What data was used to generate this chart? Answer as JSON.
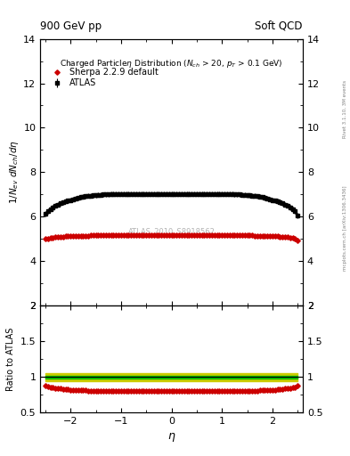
{
  "title_left": "900 GeV pp",
  "title_right": "Soft QCD",
  "watermark": "ATLAS_2010_S8918562",
  "right_label_top": "Rivet 3.1.10, 3M events",
  "right_label_bottom": "mcplots.cern.ch [arXiv:1306.3436]",
  "xlim": [
    -2.6,
    2.6
  ],
  "ylim_main": [
    2,
    14
  ],
  "ylim_ratio": [
    0.5,
    2.0
  ],
  "yticks_main": [
    2,
    4,
    6,
    8,
    10,
    12,
    14
  ],
  "yticks_ratio": [
    0.5,
    1.0,
    1.5,
    2.0
  ],
  "atlas_eta": [
    -2.5,
    -2.45,
    -2.4,
    -2.35,
    -2.3,
    -2.25,
    -2.2,
    -2.15,
    -2.1,
    -2.05,
    -2.0,
    -1.95,
    -1.9,
    -1.85,
    -1.8,
    -1.75,
    -1.7,
    -1.65,
    -1.6,
    -1.55,
    -1.5,
    -1.45,
    -1.4,
    -1.35,
    -1.3,
    -1.25,
    -1.2,
    -1.15,
    -1.1,
    -1.05,
    -1.0,
    -0.95,
    -0.9,
    -0.85,
    -0.8,
    -0.75,
    -0.7,
    -0.65,
    -0.6,
    -0.55,
    -0.5,
    -0.45,
    -0.4,
    -0.35,
    -0.3,
    -0.25,
    -0.2,
    -0.15,
    -0.1,
    -0.05,
    0.0,
    0.05,
    0.1,
    0.15,
    0.2,
    0.25,
    0.3,
    0.35,
    0.4,
    0.45,
    0.5,
    0.55,
    0.6,
    0.65,
    0.7,
    0.75,
    0.8,
    0.85,
    0.9,
    0.95,
    1.0,
    1.05,
    1.1,
    1.15,
    1.2,
    1.25,
    1.3,
    1.35,
    1.4,
    1.45,
    1.5,
    1.55,
    1.6,
    1.65,
    1.7,
    1.75,
    1.8,
    1.85,
    1.9,
    1.95,
    2.0,
    2.05,
    2.1,
    2.15,
    2.2,
    2.25,
    2.3,
    2.35,
    2.4,
    2.45,
    2.5
  ],
  "atlas_val": [
    6.15,
    6.25,
    6.35,
    6.42,
    6.5,
    6.55,
    6.6,
    6.65,
    6.7,
    6.73,
    6.75,
    6.79,
    6.82,
    6.85,
    6.88,
    6.9,
    6.92,
    6.94,
    6.95,
    6.96,
    6.97,
    6.98,
    6.99,
    7.0,
    7.0,
    7.01,
    7.02,
    7.02,
    7.02,
    7.02,
    7.02,
    7.02,
    7.02,
    7.02,
    7.02,
    7.02,
    7.02,
    7.02,
    7.02,
    7.02,
    7.02,
    7.02,
    7.02,
    7.02,
    7.02,
    7.02,
    7.02,
    7.02,
    7.02,
    7.02,
    7.02,
    7.02,
    7.02,
    7.02,
    7.02,
    7.02,
    7.02,
    7.02,
    7.02,
    7.02,
    7.02,
    7.02,
    7.02,
    7.02,
    7.02,
    7.02,
    7.02,
    7.02,
    7.02,
    7.02,
    7.02,
    7.02,
    7.02,
    7.02,
    7.02,
    7.01,
    7.0,
    7.0,
    6.99,
    6.98,
    6.97,
    6.96,
    6.95,
    6.94,
    6.92,
    6.9,
    6.88,
    6.85,
    6.82,
    6.79,
    6.75,
    6.73,
    6.7,
    6.65,
    6.6,
    6.55,
    6.5,
    6.42,
    6.35,
    6.25,
    6.05
  ],
  "atlas_err": [
    0.12,
    0.11,
    0.11,
    0.11,
    0.1,
    0.1,
    0.1,
    0.1,
    0.1,
    0.1,
    0.1,
    0.1,
    0.1,
    0.1,
    0.1,
    0.1,
    0.1,
    0.1,
    0.1,
    0.1,
    0.1,
    0.1,
    0.1,
    0.1,
    0.1,
    0.1,
    0.1,
    0.1,
    0.1,
    0.1,
    0.1,
    0.1,
    0.1,
    0.1,
    0.1,
    0.1,
    0.1,
    0.1,
    0.1,
    0.1,
    0.1,
    0.1,
    0.1,
    0.1,
    0.1,
    0.1,
    0.1,
    0.1,
    0.1,
    0.1,
    0.1,
    0.1,
    0.1,
    0.1,
    0.1,
    0.1,
    0.1,
    0.1,
    0.1,
    0.1,
    0.1,
    0.1,
    0.1,
    0.1,
    0.1,
    0.1,
    0.1,
    0.1,
    0.1,
    0.1,
    0.1,
    0.1,
    0.1,
    0.1,
    0.1,
    0.1,
    0.1,
    0.1,
    0.1,
    0.1,
    0.1,
    0.1,
    0.1,
    0.1,
    0.1,
    0.1,
    0.1,
    0.1,
    0.1,
    0.1,
    0.1,
    0.1,
    0.1,
    0.1,
    0.1,
    0.1,
    0.1,
    0.11,
    0.11,
    0.11,
    0.12
  ],
  "sherpa_eta": [
    -2.5,
    -2.45,
    -2.4,
    -2.35,
    -2.3,
    -2.25,
    -2.2,
    -2.15,
    -2.1,
    -2.05,
    -2.0,
    -1.95,
    -1.9,
    -1.85,
    -1.8,
    -1.75,
    -1.7,
    -1.65,
    -1.6,
    -1.55,
    -1.5,
    -1.45,
    -1.4,
    -1.35,
    -1.3,
    -1.25,
    -1.2,
    -1.15,
    -1.1,
    -1.05,
    -1.0,
    -0.95,
    -0.9,
    -0.85,
    -0.8,
    -0.75,
    -0.7,
    -0.65,
    -0.6,
    -0.55,
    -0.5,
    -0.45,
    -0.4,
    -0.35,
    -0.3,
    -0.25,
    -0.2,
    -0.15,
    -0.1,
    -0.05,
    0.0,
    0.05,
    0.1,
    0.15,
    0.2,
    0.25,
    0.3,
    0.35,
    0.4,
    0.45,
    0.5,
    0.55,
    0.6,
    0.65,
    0.7,
    0.75,
    0.8,
    0.85,
    0.9,
    0.95,
    1.0,
    1.05,
    1.1,
    1.15,
    1.2,
    1.25,
    1.3,
    1.35,
    1.4,
    1.45,
    1.5,
    1.55,
    1.6,
    1.65,
    1.7,
    1.75,
    1.8,
    1.85,
    1.9,
    1.95,
    2.0,
    2.05,
    2.1,
    2.15,
    2.2,
    2.25,
    2.3,
    2.35,
    2.4,
    2.45,
    2.5
  ],
  "sherpa_val": [
    5.0,
    5.03,
    5.05,
    5.07,
    5.08,
    5.09,
    5.1,
    5.11,
    5.12,
    5.125,
    5.13,
    5.135,
    5.14,
    5.145,
    5.15,
    5.15,
    5.15,
    5.155,
    5.16,
    5.16,
    5.16,
    5.16,
    5.16,
    5.16,
    5.17,
    5.17,
    5.17,
    5.17,
    5.17,
    5.17,
    5.17,
    5.17,
    5.17,
    5.17,
    5.17,
    5.17,
    5.17,
    5.17,
    5.17,
    5.17,
    5.17,
    5.17,
    5.17,
    5.17,
    5.17,
    5.17,
    5.17,
    5.17,
    5.17,
    5.17,
    5.17,
    5.17,
    5.17,
    5.17,
    5.17,
    5.17,
    5.17,
    5.17,
    5.17,
    5.17,
    5.17,
    5.17,
    5.17,
    5.17,
    5.17,
    5.17,
    5.17,
    5.17,
    5.17,
    5.17,
    5.17,
    5.17,
    5.17,
    5.17,
    5.17,
    5.17,
    5.17,
    5.16,
    5.16,
    5.16,
    5.16,
    5.16,
    5.16,
    5.155,
    5.15,
    5.15,
    5.15,
    5.145,
    5.14,
    5.135,
    5.13,
    5.125,
    5.12,
    5.11,
    5.1,
    5.09,
    5.08,
    5.07,
    5.05,
    5.03,
    4.95
  ],
  "ratio_sherpa": [
    0.875,
    0.868,
    0.86,
    0.853,
    0.847,
    0.842,
    0.838,
    0.834,
    0.83,
    0.826,
    0.823,
    0.82,
    0.818,
    0.816,
    0.814,
    0.813,
    0.811,
    0.81,
    0.809,
    0.808,
    0.807,
    0.806,
    0.805,
    0.804,
    0.804,
    0.803,
    0.802,
    0.802,
    0.801,
    0.801,
    0.8,
    0.8,
    0.8,
    0.8,
    0.8,
    0.8,
    0.8,
    0.8,
    0.8,
    0.8,
    0.8,
    0.8,
    0.8,
    0.8,
    0.8,
    0.8,
    0.8,
    0.8,
    0.8,
    0.8,
    0.8,
    0.8,
    0.8,
    0.8,
    0.8,
    0.8,
    0.8,
    0.8,
    0.8,
    0.8,
    0.8,
    0.8,
    0.8,
    0.8,
    0.8,
    0.8,
    0.8,
    0.8,
    0.8,
    0.8,
    0.8,
    0.8,
    0.801,
    0.801,
    0.802,
    0.802,
    0.803,
    0.804,
    0.804,
    0.805,
    0.806,
    0.807,
    0.808,
    0.809,
    0.81,
    0.811,
    0.813,
    0.814,
    0.816,
    0.818,
    0.82,
    0.823,
    0.826,
    0.83,
    0.834,
    0.838,
    0.842,
    0.847,
    0.853,
    0.86,
    0.875
  ],
  "atlas_color": "black",
  "sherpa_color": "#cc0000",
  "band_green": "#00bb00",
  "band_yellow": "#cccc00",
  "ratio_ref": 1.0,
  "ratio_green_hw": 0.02,
  "ratio_yellow_hw": 0.06
}
